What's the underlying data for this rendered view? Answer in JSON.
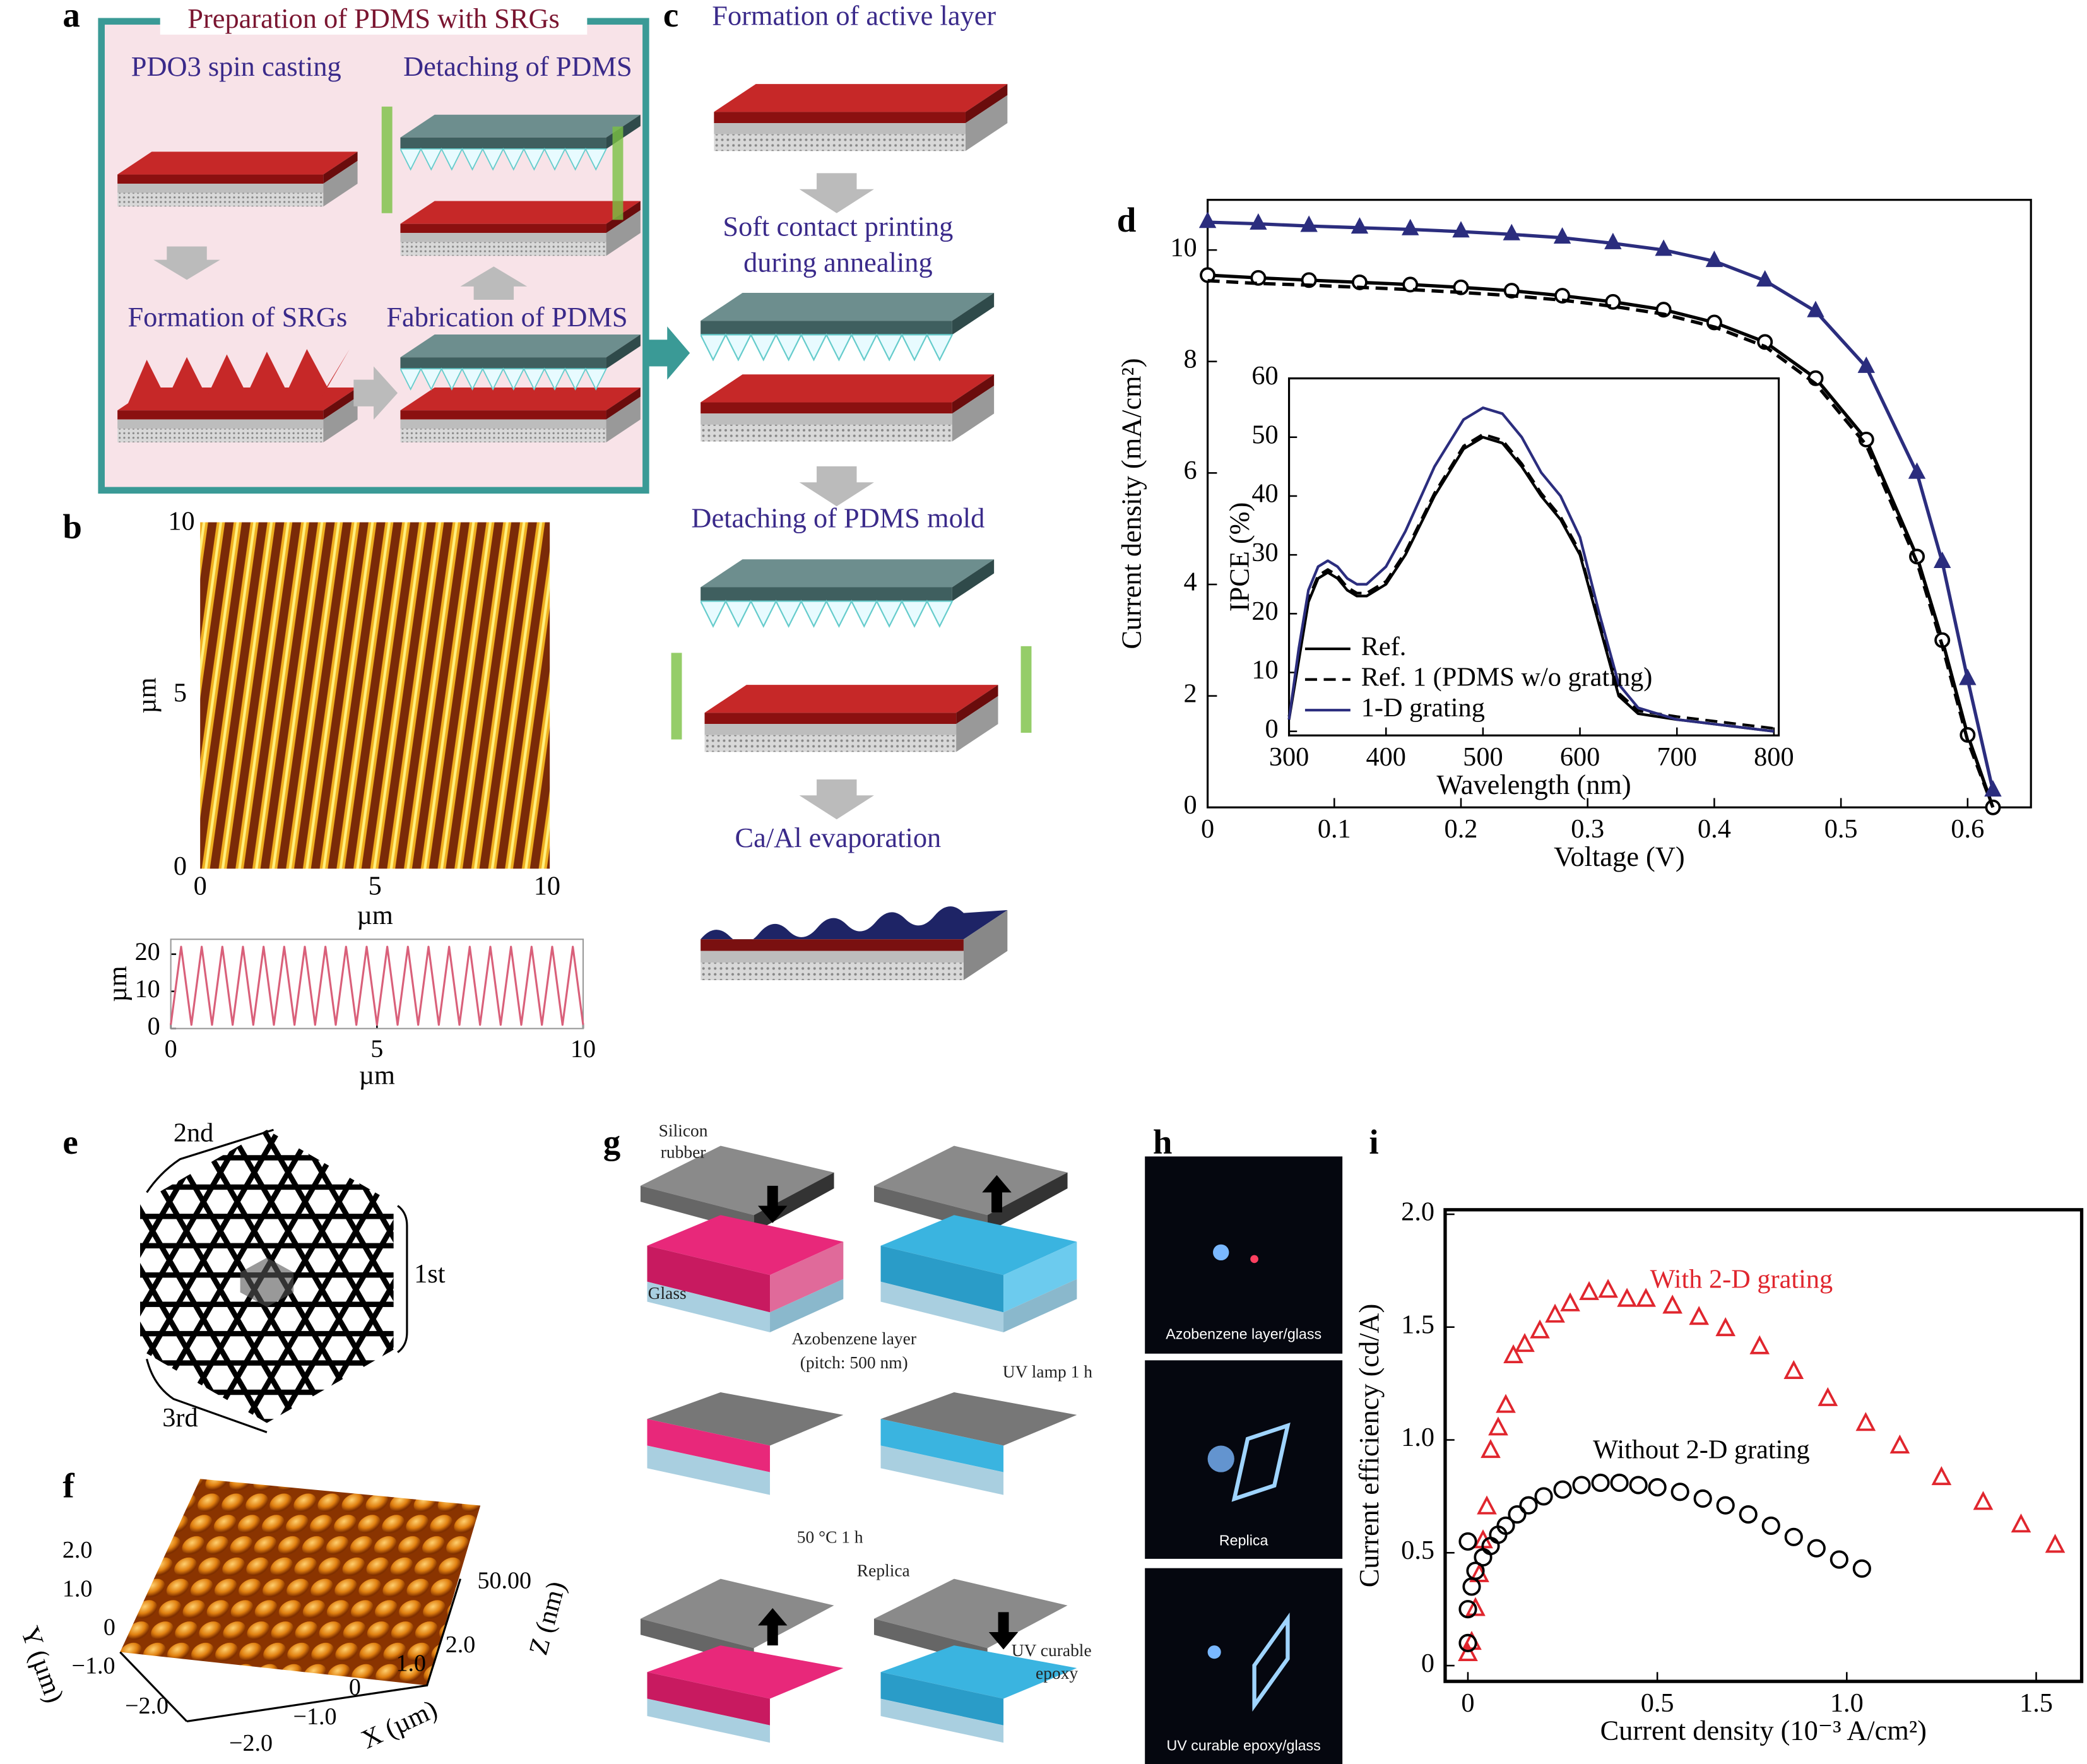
{
  "panel_labels": [
    "a",
    "b",
    "c",
    "d",
    "e",
    "f",
    "g",
    "h",
    "i"
  ],
  "a": {
    "title": "Preparation of PDMS with SRGs",
    "steps": [
      "PDO3 spin casting",
      "Detaching of PDMS",
      "Formation of SRGs",
      "Fabrication of PDMS"
    ]
  },
  "b": {
    "image_xticks": [
      0,
      5,
      10
    ],
    "image_yticks": [
      0,
      5,
      10
    ],
    "image_xlabel": "µm",
    "image_ylabel": "µm"
  },
  "c": {
    "steps": [
      "Formation of active layer",
      "Soft contact printing",
      "during annealing",
      "Detaching of PDMS mold",
      "Ca/Al evaporation"
    ]
  },
  "e": {
    "labels": [
      "2nd",
      "1st",
      "3rd"
    ]
  },
  "f": {
    "y_ticks": [
      "2.0",
      "1.0",
      "0",
      "−1.0",
      "−2.0"
    ],
    "x_ticks": [
      "−2.0",
      "−1.0",
      "0",
      "1.0",
      "2.0"
    ],
    "z_tick": "50.00",
    "x_label": "X (µm)",
    "y_label": "Y (µm)",
    "z_label": "Z (nm)"
  },
  "g": {
    "labels": [
      "Silicon",
      "rubber",
      "Glass",
      "Azobenzene layer",
      "(pitch: 500 nm)",
      "UV lamp 1 h",
      "50 °C 1 h",
      "Replica",
      "UV curable",
      "epoxy"
    ]
  },
  "h": {
    "captions": [
      "Azobenzene layer/glass",
      "Replica",
      "UV curable epoxy/glass"
    ]
  },
  "chart_data": [
    {
      "type": "line",
      "xlabel": "Voltage (V)",
      "ylabel": "Current density (mA/cm²)",
      "xlim": [
        0,
        0.65
      ],
      "ylim": [
        0,
        10.9
      ],
      "xticks": [
        0,
        0.1,
        0.2,
        0.3,
        0.4,
        0.5,
        0.6
      ],
      "yticks": [
        0,
        2,
        4,
        6,
        8,
        10
      ],
      "x": [
        0,
        0.04,
        0.08,
        0.12,
        0.16,
        0.2,
        0.24,
        0.28,
        0.32,
        0.36,
        0.4,
        0.44,
        0.48,
        0.52,
        0.56,
        0.58,
        0.6,
        0.62
      ],
      "series": [
        {
          "color": "#000000",
          "line": true,
          "marker": "circle",
          "values": [
            9.55,
            9.5,
            9.46,
            9.42,
            9.38,
            9.33,
            9.27,
            9.18,
            9.07,
            8.93,
            8.7,
            8.35,
            7.7,
            6.6,
            4.5,
            3.0,
            1.3,
            0
          ]
        },
        {
          "color": "#000000",
          "line": true,
          "dash": true,
          "values": [
            9.45,
            9.4,
            9.37,
            9.33,
            9.29,
            9.24,
            9.18,
            9.1,
            8.99,
            8.85,
            8.62,
            8.27,
            7.6,
            6.5,
            4.4,
            2.9,
            1.2,
            0
          ]
        },
        {
          "color": "#2b2d7e",
          "line": true,
          "marker": "triangle",
          "filled": true,
          "values": [
            10.5,
            10.47,
            10.43,
            10.4,
            10.37,
            10.33,
            10.28,
            10.22,
            10.12,
            10.0,
            9.8,
            9.45,
            8.9,
            7.9,
            6.0,
            4.4,
            2.3,
            0.3
          ]
        }
      ]
    },
    {
      "type": "line",
      "xlabel": "Wavelength (nm)",
      "ylabel": "IPCE (%)",
      "xlim": [
        300,
        805
      ],
      "ylim": [
        -0.7,
        60
      ],
      "xticks": [
        300,
        400,
        500,
        600,
        700,
        800
      ],
      "yticks": [
        0,
        10,
        20,
        30,
        40,
        50,
        60
      ],
      "legend": true,
      "x": [
        300,
        310,
        320,
        330,
        340,
        350,
        360,
        370,
        380,
        400,
        420,
        450,
        480,
        500,
        520,
        540,
        560,
        580,
        600,
        620,
        640,
        660,
        700,
        750,
        800
      ],
      "series": [
        {
          "name": "Ref.",
          "color": "#000000",
          "line": true,
          "values": [
            2,
            12,
            22,
            26,
            27,
            26,
            24,
            23,
            23,
            25,
            30,
            40,
            48,
            50,
            49,
            45,
            40,
            36,
            30,
            18,
            6,
            3,
            2,
            1,
            0
          ]
        },
        {
          "name": "Ref. 1 (PDMS w/o grating)",
          "color": "#000000",
          "line": true,
          "dash": true,
          "values": [
            2.5,
            12.5,
            22.5,
            26.5,
            27.5,
            26.5,
            24.5,
            23.5,
            23.5,
            25.5,
            30.5,
            40.5,
            48.5,
            50.5,
            49.5,
            45.5,
            40.5,
            36.5,
            30.5,
            18.5,
            6.5,
            3.5,
            2.5,
            1.5,
            0.5
          ]
        },
        {
          "name": "1-D grating",
          "color": "#2b2d7e",
          "line": true,
          "values": [
            2,
            14,
            24,
            28,
            29,
            28,
            26,
            25,
            25,
            28,
            34,
            45,
            53,
            55,
            54,
            50,
            44,
            40,
            33,
            20,
            8,
            4,
            2,
            1,
            0
          ]
        }
      ]
    },
    {
      "type": "scatter",
      "xlabel": "Current density (10⁻³ A/cm²)",
      "ylabel": "Current efficiency (cd/A)",
      "xlim": [
        -0.06,
        1.62
      ],
      "ylim": [
        -0.07,
        2.02
      ],
      "xticks": [
        0,
        0.5,
        {
          "value": 1,
          "label": "1.0"
        },
        1.5
      ],
      "yticks": [
        0,
        0.5,
        {
          "value": 1,
          "label": "1.0"
        },
        1.5,
        {
          "value": 2,
          "label": "2.0"
        }
      ],
      "annotations": [
        {
          "text": "With 2-D grating",
          "color": "#e0262e"
        },
        {
          "text": "Without 2-D grating",
          "color": "#000000"
        }
      ],
      "series": [
        {
          "color": "#e0262e",
          "marker": "triangle",
          "x": [
            0,
            0.01,
            0.02,
            0.03,
            0.04,
            0.05,
            0.06,
            0.08,
            0.1,
            0.12,
            0.15,
            0.19,
            0.23,
            0.27,
            0.32,
            0.37,
            0.42,
            0.47,
            0.54,
            0.61,
            0.68,
            0.77,
            0.86,
            0.95,
            1.05,
            1.14,
            1.25,
            1.36,
            1.46,
            1.55
          ],
          "values": [
            0.05,
            0.1,
            0.25,
            0.4,
            0.55,
            0.7,
            0.95,
            1.05,
            1.15,
            1.37,
            1.42,
            1.48,
            1.55,
            1.6,
            1.65,
            1.66,
            1.62,
            1.62,
            1.59,
            1.54,
            1.49,
            1.41,
            1.3,
            1.18,
            1.07,
            0.97,
            0.83,
            0.72,
            0.62,
            0.53
          ]
        },
        {
          "color": "#000000",
          "marker": "circle",
          "x": [
            0,
            0,
            0,
            0.01,
            0.02,
            0.04,
            0.06,
            0.08,
            0.1,
            0.13,
            0.16,
            0.2,
            0.25,
            0.3,
            0.35,
            0.4,
            0.45,
            0.5,
            0.56,
            0.62,
            0.68,
            0.74,
            0.8,
            0.86,
            0.92,
            0.98,
            1.04
          ],
          "values": [
            0.1,
            0.25,
            0.55,
            0.35,
            0.42,
            0.48,
            0.53,
            0.58,
            0.62,
            0.67,
            0.71,
            0.75,
            0.78,
            0.8,
            0.81,
            0.81,
            0.8,
            0.79,
            0.77,
            0.74,
            0.71,
            0.67,
            0.62,
            0.57,
            0.52,
            0.47,
            0.43
          ]
        }
      ]
    },
    {
      "type": "line",
      "xlabel": "µm",
      "ylabel": "µm",
      "xlim": [
        0,
        10
      ],
      "ylim": [
        0,
        24
      ],
      "xticks": [
        0,
        5,
        10
      ],
      "yticks": [
        0,
        10,
        20
      ],
      "x": [
        0,
        0.25,
        0.5,
        0.75,
        1,
        1.25,
        1.5,
        1.75,
        2,
        2.25,
        2.5,
        2.75,
        3,
        3.25,
        3.5,
        3.75,
        4,
        4.25,
        4.5,
        4.75,
        5,
        5.25,
        5.5,
        5.75,
        6,
        6.25,
        6.5,
        6.75,
        7,
        7.25,
        7.5,
        7.75,
        8,
        8.25,
        8.5,
        8.75,
        9,
        9.25,
        9.5,
        9.75,
        10
      ],
      "series": [
        {
          "color": "#d9607a",
          "line": true,
          "values": [
            1,
            22,
            1,
            22,
            1,
            22,
            1,
            22,
            1,
            22,
            1,
            22,
            1,
            22,
            1,
            22,
            1,
            22,
            1,
            22,
            1,
            22,
            1,
            22,
            1,
            22,
            1,
            22,
            1,
            22,
            1,
            22,
            1,
            22,
            1,
            22,
            1,
            22,
            1,
            22,
            1
          ]
        }
      ]
    }
  ]
}
